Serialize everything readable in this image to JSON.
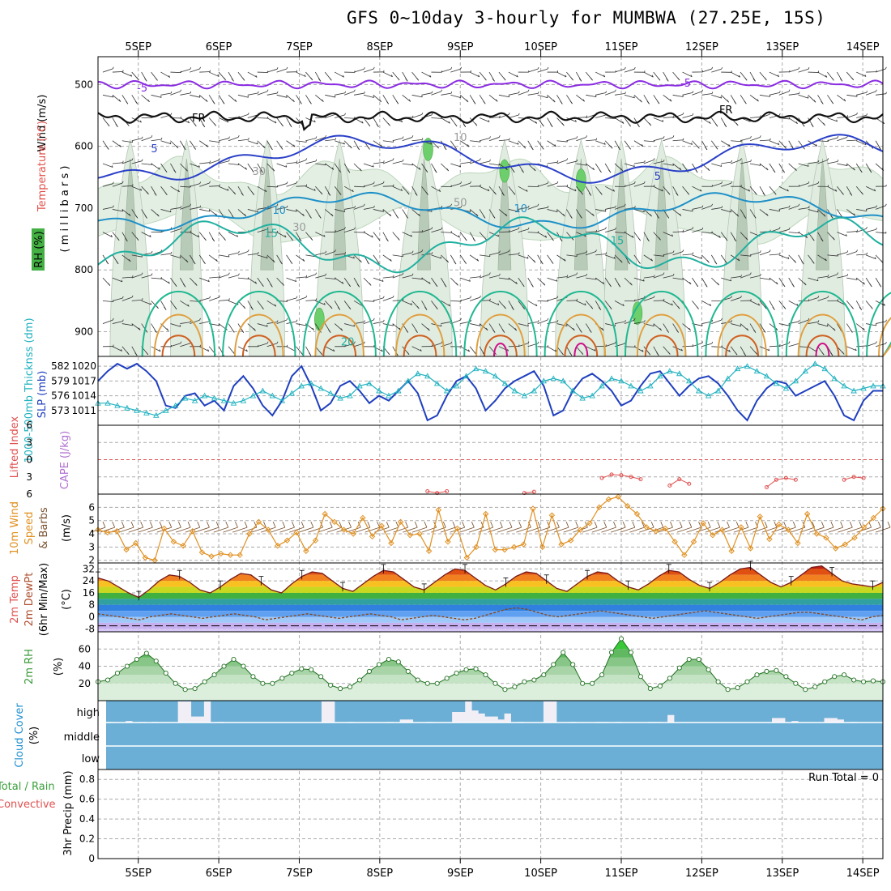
{
  "title": "GFS 0~10day 3-hourly for MUMBWA (27.25E, 15S)",
  "dates": [
    "5SEP",
    "6SEP",
    "7SEP",
    "8SEP",
    "9SEP",
    "10SEP",
    "11SEP",
    "12SEP",
    "13SEP",
    "14SEP"
  ],
  "colors": {
    "grid": "#aaaaaa",
    "panel_border": "#000000",
    "cloud": "#6baed6",
    "cloud_gap": "#f2eef6",
    "temp_line": "#7a1a1a",
    "dewpt_line": "#8b4513",
    "rh_green": "#3a9a3a",
    "cape": "#e05050",
    "wind_speed": "#e09020",
    "slp": "#1f3fbf",
    "thick": "#20b2c0"
  },
  "panels": {
    "profile": {
      "ylabels": {
        "wind": "Wind (m/s)",
        "temperature": "Temperature (°C)",
        "millibars": "( m i l l i b a r s )",
        "rh": "RH (%)"
      },
      "ticks": [
        "500",
        "600",
        "700",
        "800",
        "900"
      ],
      "contour_labels": {
        "fr1": "FR",
        "fr2": "FR",
        "m5a": "-5",
        "m5b": "-5",
        "p5a": "5",
        "p5b": "5",
        "p10a": "10",
        "p10b": "10",
        "p15a": "15",
        "p15b": "15",
        "p20": "20",
        "rh10": "10",
        "rh30a": "30",
        "rh30b": "30",
        "rh50": "50"
      }
    },
    "slp": {
      "ylabels": {
        "thickness": "1000-500mb Thicknss (dm)",
        "slp": "SLP (mb)"
      },
      "left_ticks": [
        "582",
        "579",
        "576",
        "573"
      ],
      "right_ticks": [
        "1020",
        "1017",
        "1014",
        "1011"
      ]
    },
    "cape": {
      "ylabels": {
        "li": "Lifted Index",
        "cape": "CAPE (J/kg)"
      },
      "ticks": [
        "6",
        "3",
        "0",
        "3",
        "6"
      ]
    },
    "wind10": {
      "ylabels": {
        "a": "10m Wind",
        "b": "Speed",
        "c": "& Barbs",
        "d": "(m/s)"
      },
      "ticks": [
        "6",
        "5",
        "4",
        "3",
        "2"
      ]
    },
    "temp2m": {
      "ylabels": {
        "a": "2m Temp",
        "b": "2m DewPt",
        "c": "(6hr Min/Max)",
        "d": "(°C)"
      },
      "ticks": [
        "32",
        "24",
        "16",
        "8",
        "0",
        "-8"
      ]
    },
    "rh2m": {
      "ylabels": {
        "a": "2m RH",
        "b": "(%)"
      },
      "ticks": [
        "60",
        "40",
        "20"
      ]
    },
    "cloud": {
      "ylabels": {
        "a": "Cloud Cover",
        "b": "(%)"
      },
      "levels": [
        "high",
        "middle",
        "low"
      ]
    },
    "precip": {
      "ylabels": {
        "a": "Total / Rain",
        "b": "Convective",
        "c": "3hr Precip (mm)"
      },
      "ticks": [
        "0.8",
        "0.6",
        "0.4",
        "0.2",
        "0"
      ],
      "run_total": "Run Total = 0"
    }
  },
  "chart_data": [
    {
      "type": "line",
      "name": "slp",
      "ylabel": "SLP (mb)",
      "ylim": [
        1008,
        1022
      ],
      "values": [
        1017,
        1019,
        1020.5,
        1019.5,
        1020.5,
        1019,
        1017,
        1012,
        1011.5,
        1014,
        1014.5,
        1012,
        1013,
        1011,
        1016,
        1018,
        1015.5,
        1012,
        1010,
        1013,
        1018,
        1020,
        1016,
        1011,
        1012.5,
        1016,
        1017,
        1015,
        1012.5,
        1014,
        1013,
        1015,
        1017,
        1014.5,
        1009,
        1010,
        1014,
        1017,
        1018,
        1015.5,
        1011,
        1013,
        1015.5,
        1017,
        1018,
        1019,
        1016,
        1010,
        1011,
        1015,
        1017.5,
        1018.5,
        1017,
        1015,
        1012,
        1013,
        1016,
        1018.5,
        1019,
        1016.5,
        1014,
        1016,
        1017.5,
        1018,
        1016.5,
        1014,
        1011,
        1009,
        1013,
        1015.5,
        1017,
        1016.5,
        1014,
        1015,
        1016,
        1017,
        1014,
        1010,
        1009,
        1013,
        1015,
        1015
      ]
    },
    {
      "type": "line",
      "name": "thickness",
      "ylabel": "Thicknss (dm)",
      "ylim": [
        570,
        584
      ],
      "values": [
        574.5,
        574.5,
        574,
        573.5,
        573,
        572.5,
        572,
        573,
        574,
        575.5,
        575,
        576,
        575.5,
        575,
        574.5,
        575,
        576,
        577,
        576,
        575,
        576.5,
        578,
        578.5,
        577.5,
        576.5,
        575.5,
        576,
        578,
        578.5,
        577,
        576,
        577,
        579,
        580.5,
        580,
        578.5,
        577,
        578,
        580,
        581.5,
        581,
        580,
        578.5,
        577,
        576,
        577,
        579,
        579.5,
        579,
        577,
        575.5,
        576,
        578,
        579.5,
        579,
        578,
        577,
        578,
        580,
        581,
        580.5,
        579,
        577,
        576,
        577,
        579.5,
        581.5,
        582,
        581,
        580,
        578.5,
        577.5,
        579,
        581,
        582.5,
        581.5,
        579.5,
        578,
        577,
        577.5,
        578,
        578
      ]
    },
    {
      "type": "line",
      "name": "lifted_index",
      "ylim": [
        -6,
        6
      ],
      "values": [
        null,
        null,
        null,
        null,
        null,
        null,
        null,
        null,
        null,
        null,
        null,
        null,
        null,
        null,
        null,
        null,
        null,
        null,
        null,
        null,
        null,
        null,
        null,
        null,
        null,
        null,
        null,
        null,
        null,
        null,
        null,
        null,
        null,
        null,
        5.5,
        5.8,
        5.5,
        null,
        null,
        null,
        null,
        null,
        null,
        null,
        5.8,
        5.6,
        null,
        null,
        null,
        null,
        null,
        null,
        3.2,
        2.6,
        2.7,
        3,
        3.4,
        null,
        null,
        4.5,
        3.4,
        4.2,
        null,
        null,
        null,
        null,
        null,
        null,
        null,
        4.8,
        3.5,
        3.2,
        3.5,
        null,
        null,
        null,
        null,
        3.5,
        3.0,
        3.2,
        null,
        null
      ]
    },
    {
      "type": "line",
      "name": "wind10_speed",
      "ylabel": "(m/s)",
      "ylim": [
        2,
        7
      ],
      "values": [
        4.3,
        4.1,
        4.2,
        2.8,
        3.3,
        2.2,
        2.0,
        4.4,
        3.4,
        3.1,
        4.2,
        2.6,
        2.3,
        2.5,
        2.4,
        2.4,
        4.0,
        4.9,
        4.3,
        3.1,
        3.5,
        4.1,
        2.7,
        3.5,
        5.5,
        4.9,
        4.3,
        4.0,
        5.2,
        3.8,
        4.6,
        3.3,
        4.9,
        3.9,
        4.0,
        2.7,
        5.8,
        3.4,
        4.4,
        2.2,
        3.0,
        5.5,
        2.8,
        2.8,
        3.0,
        3.2,
        5.9,
        3.0,
        5.4,
        3.2,
        3.5,
        4.3,
        4.8,
        6.0,
        6.6,
        6.8,
        6.1,
        5.5,
        4.5,
        4.2,
        4.4,
        3.4,
        2.4,
        3.4,
        4.8,
        3.9,
        4.3,
        2.7,
        4.5,
        2.9,
        5.3,
        3.6,
        4.7,
        4.3,
        3.3,
        5.5,
        4.0,
        3.7,
        2.9,
        3.2,
        3.7,
        4.5,
        5.2,
        5.9
      ]
    },
    {
      "type": "area",
      "name": "temp2m",
      "ylabel": "(°C)",
      "ylim": [
        -10,
        36
      ],
      "values": [
        26,
        24,
        20,
        16,
        13,
        18,
        24,
        28,
        27,
        23,
        18,
        16,
        20,
        25,
        29,
        28,
        23,
        18,
        16,
        22,
        27,
        30,
        29,
        24,
        19,
        17,
        22,
        27,
        31,
        30,
        25,
        20,
        18,
        23,
        28,
        32,
        31,
        26,
        21,
        18,
        22,
        27,
        30,
        29,
        24,
        19,
        17,
        22,
        27,
        30,
        29,
        24,
        20,
        18,
        22,
        27,
        31,
        30,
        25,
        21,
        19,
        23,
        28,
        32,
        33,
        28,
        23,
        20,
        23,
        28,
        33,
        34,
        29,
        24,
        22,
        21,
        20,
        23
      ]
    },
    {
      "type": "line",
      "name": "dewpt2m",
      "ylabel": "(°C)",
      "ylim": [
        -10,
        36
      ],
      "values": [
        2,
        1,
        0,
        -1,
        -2,
        0,
        1,
        2,
        1,
        0,
        -1,
        0,
        1,
        2,
        1,
        0,
        -2,
        -1,
        0,
        1,
        2,
        1,
        0,
        -1,
        0,
        1,
        2,
        1,
        0,
        -2,
        -1,
        0,
        1,
        0,
        -1,
        -2,
        -1,
        1,
        3,
        5,
        6,
        5,
        3,
        1,
        0,
        1,
        2,
        3,
        4,
        3,
        2,
        1,
        0,
        -1,
        0,
        1,
        2,
        3,
        4,
        3,
        2,
        1,
        0,
        -1,
        0,
        1,
        2,
        3,
        3,
        2,
        1,
        0,
        -1,
        -2,
        0,
        1
      ]
    },
    {
      "type": "area",
      "name": "rh2m",
      "ylabel": "(%)",
      "ylim": [
        0,
        80
      ],
      "values": [
        22,
        24,
        32,
        40,
        48,
        55,
        46,
        32,
        20,
        13,
        14,
        22,
        30,
        40,
        48,
        40,
        28,
        20,
        20,
        26,
        32,
        37,
        36,
        28,
        18,
        14,
        16,
        24,
        34,
        42,
        48,
        45,
        34,
        24,
        20,
        20,
        26,
        32,
        36,
        37,
        30,
        20,
        13,
        16,
        22,
        24,
        30,
        42,
        56,
        42,
        20,
        20,
        30,
        56,
        72,
        56,
        28,
        14,
        17,
        26,
        38,
        48,
        48,
        36,
        22,
        13,
        15,
        22,
        30,
        34,
        35,
        28,
        20,
        13,
        16,
        22,
        28,
        30,
        24,
        22,
        23,
        22
      ]
    },
    {
      "type": "bar",
      "name": "cloud_high",
      "ylabel": "Cloud Cover (%)",
      "ylim": [
        0,
        100
      ],
      "values": [
        2,
        0,
        0,
        5,
        0,
        2,
        0,
        2,
        0,
        0,
        0,
        70,
        70,
        20,
        20,
        70,
        0,
        2,
        0,
        0,
        0,
        0,
        0,
        0,
        0,
        0,
        0,
        0,
        0,
        0,
        0,
        0,
        0,
        70,
        70,
        0,
        0,
        2,
        0,
        0,
        0,
        0,
        0,
        2,
        0,
        10,
        10,
        0,
        0,
        2,
        0,
        0,
        0,
        35,
        35,
        70,
        40,
        30,
        20,
        20,
        10,
        30,
        0,
        2,
        0,
        0,
        0,
        70,
        70,
        0,
        0,
        2,
        0,
        0,
        0,
        2,
        2,
        0,
        2,
        0,
        0,
        0,
        0,
        2,
        2,
        0,
        25,
        0,
        0,
        0,
        0,
        0,
        0,
        0,
        0,
        0,
        0,
        0,
        0,
        0,
        0,
        0,
        15,
        15,
        0,
        5,
        0,
        0,
        0,
        0,
        15,
        15,
        10,
        0,
        2,
        0,
        0,
        0,
        0
      ]
    },
    {
      "type": "bar",
      "name": "precip_3hr",
      "ylabel": "3hr Precip (mm)",
      "ylim": [
        0,
        0.9
      ],
      "values": [],
      "annotations": [
        "Run Total = 0"
      ]
    }
  ]
}
